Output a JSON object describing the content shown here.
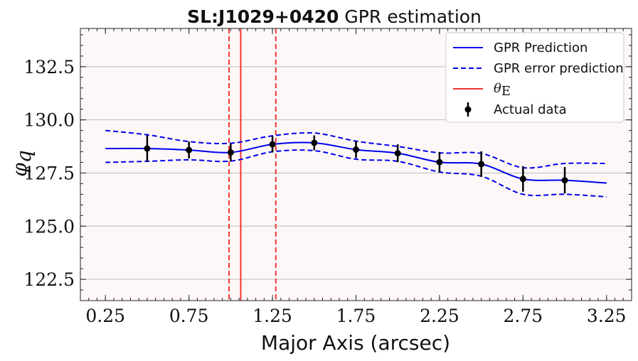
{
  "chart_data": {
    "type": "line",
    "title_bold": "SL:J1029+0420",
    "title_rest": "GPR estimation",
    "xlabel": "Major Axis (arcsec)",
    "ylabel_symbol": "φ",
    "ylabel_subscript": "q",
    "xlim": [
      0.1,
      3.4
    ],
    "ylim": [
      121.5,
      134.3
    ],
    "x_ticks": [
      0.25,
      0.75,
      1.25,
      1.75,
      2.25,
      2.75,
      3.25
    ],
    "x_tick_labels": [
      "0.25",
      "0.75",
      "1.25",
      "1.75",
      "2.25",
      "2.75",
      "3.25"
    ],
    "y_ticks": [
      122.5,
      125.0,
      127.5,
      130.0,
      132.5
    ],
    "y_tick_labels": [
      "122.5",
      "125.0",
      "127.5",
      "130.0",
      "132.5"
    ],
    "grid": "horizontal",
    "legend_position": "top-right",
    "colors": {
      "prediction": "#0000ee",
      "error_prediction": "#0000ee",
      "theta": "#ee3333",
      "data": "#000000",
      "plot_background": "#fdf8f7"
    },
    "legend": {
      "prediction": "GPR Prediction",
      "error_prediction": "GPR error prediction",
      "theta_symbol": "θ",
      "theta_subscript": "E",
      "data": "Actual data"
    },
    "prediction": {
      "x": [
        0.25,
        0.5,
        0.75,
        1.0,
        1.25,
        1.5,
        1.75,
        2.0,
        2.25,
        2.5,
        2.75,
        3.0,
        3.25
      ],
      "y": [
        128.65,
        128.65,
        128.58,
        128.47,
        128.85,
        128.92,
        128.6,
        128.43,
        128.01,
        127.92,
        127.22,
        127.16,
        127.03
      ]
    },
    "error_upper": {
      "x": [
        0.25,
        0.5,
        0.75,
        1.0,
        1.25,
        1.5,
        1.75,
        2.0,
        2.25,
        2.5,
        2.75,
        3.0,
        3.25
      ],
      "y": [
        129.5,
        129.3,
        128.98,
        128.9,
        129.25,
        129.38,
        129.0,
        128.75,
        128.45,
        128.42,
        127.75,
        127.95,
        127.95
      ]
    },
    "error_lower": {
      "x": [
        0.25,
        0.5,
        0.75,
        1.0,
        1.25,
        1.5,
        1.75,
        2.0,
        2.25,
        2.5,
        2.75,
        3.0,
        3.25
      ],
      "y": [
        128.0,
        128.05,
        128.12,
        128.06,
        128.5,
        128.55,
        128.15,
        128.05,
        127.55,
        127.35,
        126.5,
        126.5,
        126.38
      ]
    },
    "actual_data": {
      "x": [
        0.5,
        0.75,
        1.0,
        1.25,
        1.5,
        1.75,
        2.0,
        2.25,
        2.5,
        2.75,
        3.0
      ],
      "y": [
        128.65,
        128.58,
        128.47,
        128.85,
        128.92,
        128.6,
        128.43,
        128.01,
        127.92,
        127.22,
        127.16
      ],
      "err": [
        0.62,
        0.4,
        0.42,
        0.38,
        0.35,
        0.4,
        0.42,
        0.48,
        0.6,
        0.6,
        0.62
      ]
    },
    "theta_E": {
      "x": 1.06,
      "lower": 0.99,
      "upper": 1.27
    }
  }
}
